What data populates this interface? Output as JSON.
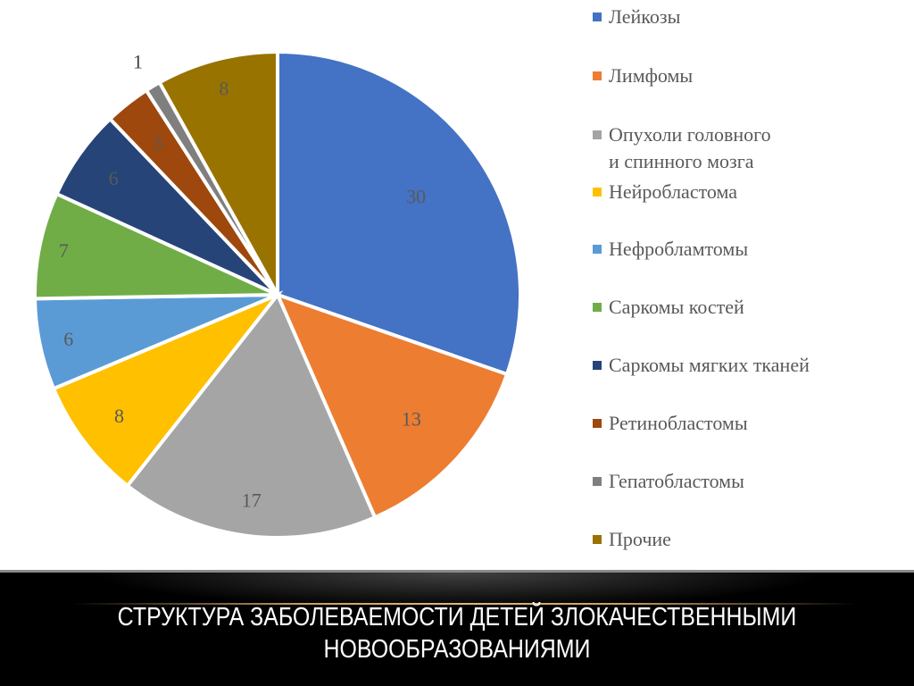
{
  "slide": {
    "title_line1": "СТРУКТУРА ЗАБОЛЕВАЕМОСТИ ДЕТЕЙ ЗЛОКАЧЕСТВЕННЫМИ",
    "title_line2": "НОВООБРАЗОВАНИЯМИ"
  },
  "legend": [
    {
      "label": "Лейкозы",
      "color": "#4472C4"
    },
    {
      "label": "Лимфомы",
      "color": "#ED7D31"
    },
    {
      "label": "Опухоли головного\nи спинного мозга",
      "color": "#A5A5A5"
    },
    {
      "label": "Нейробластома",
      "color": "#FFC000"
    },
    {
      "label": "Нефробламтомы",
      "color": "#5B9BD5"
    },
    {
      "label": "Саркомы костей",
      "color": "#70AD47"
    },
    {
      "label": "Саркомы мягких тканей",
      "color": "#264478"
    },
    {
      "label": "Ретинобластомы",
      "color": "#9E480E"
    },
    {
      "label": "Гепатобластомы",
      "color": "#7F7F7F"
    },
    {
      "label": "Прочие",
      "color": "#997300"
    }
  ],
  "chart_data": {
    "type": "pie",
    "title": "Структура заболеваемости детей злокачественными новообразованиями",
    "categories": [
      "Лейкозы",
      "Лимфомы",
      "Опухоли головного и спинного мозга",
      "Нейробластома",
      "Нефробламтомы",
      "Саркомы костей",
      "Саркомы мягких тканей",
      "Ретинобластомы",
      "Гепатобластомы",
      "Прочие"
    ],
    "values": [
      30,
      13,
      17,
      8,
      6,
      7,
      6,
      3,
      1,
      8
    ],
    "colors": [
      "#4472C4",
      "#ED7D31",
      "#A5A5A5",
      "#FFC000",
      "#5B9BD5",
      "#70AD47",
      "#264478",
      "#9E480E",
      "#7F7F7F",
      "#997300"
    ],
    "data_labels": [
      "30",
      "13",
      "17",
      "8",
      "6",
      "7",
      "6",
      "3",
      "1",
      "8"
    ],
    "start_angle_deg": 0,
    "direction": "clockwise",
    "legend_position": "right"
  }
}
